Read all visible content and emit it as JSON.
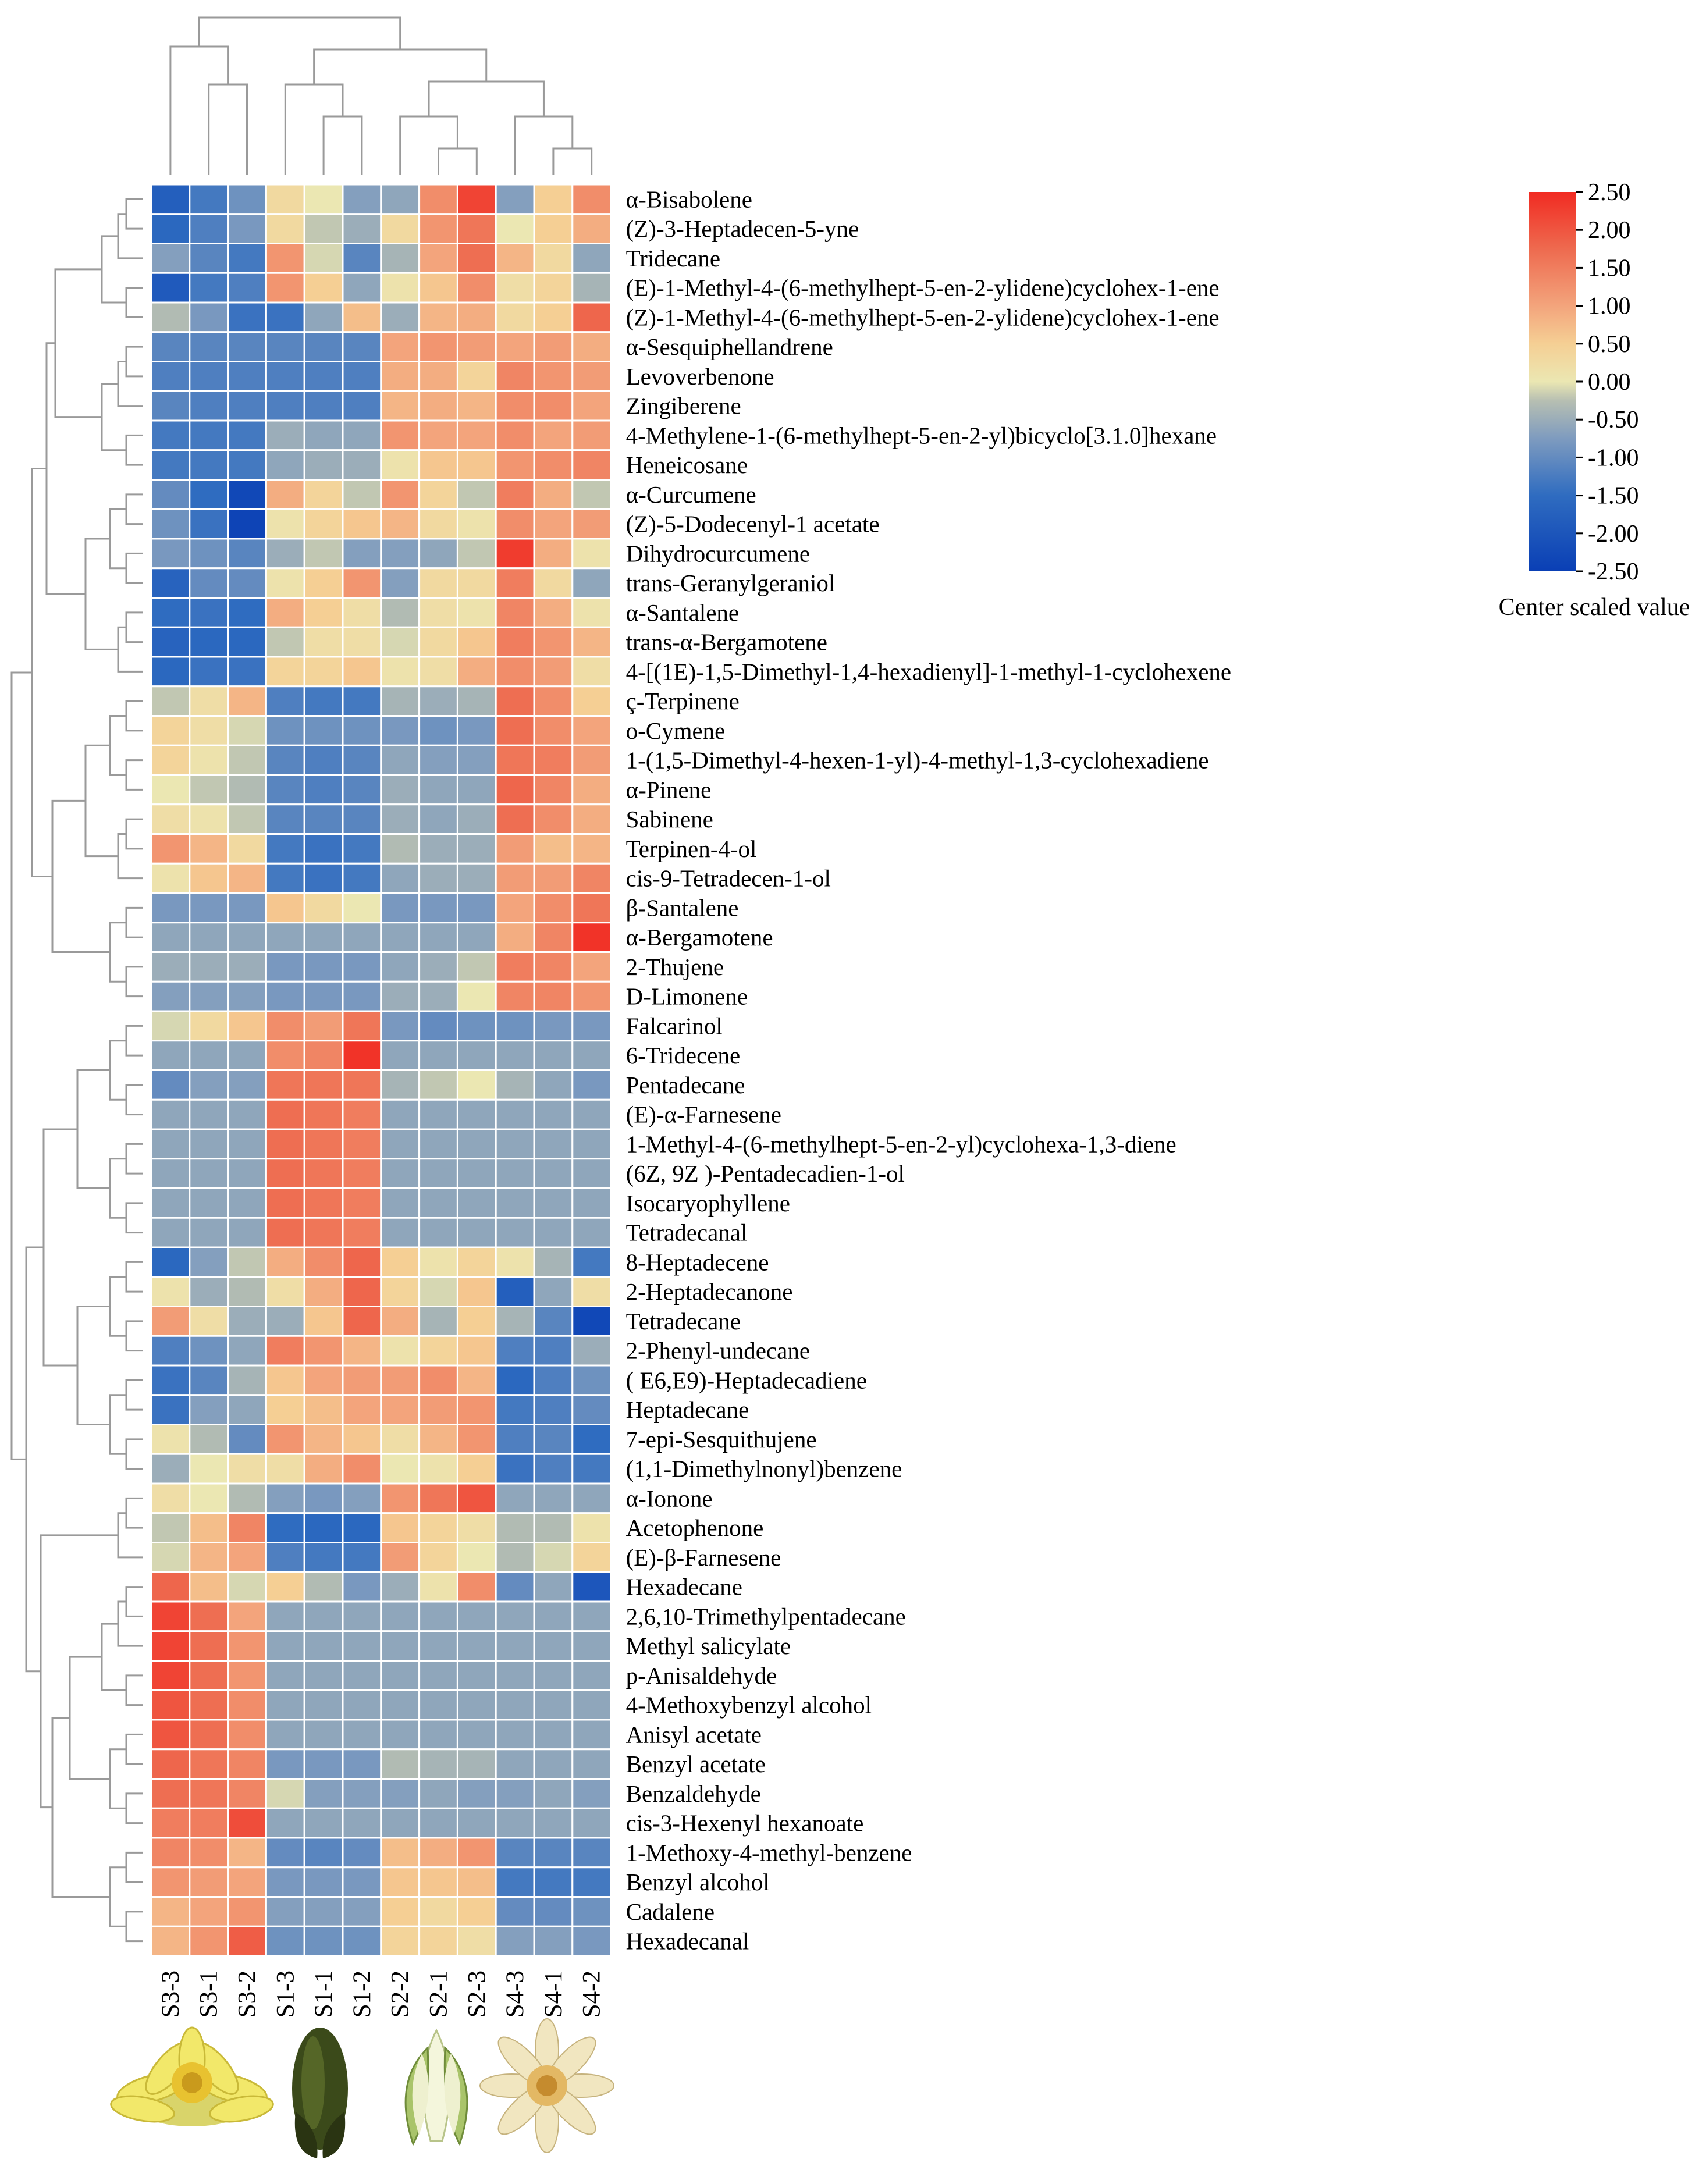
{
  "chart_data": {
    "type": "heatmap",
    "samples": [
      "S3-3",
      "S3-1",
      "S3-2",
      "S1-3",
      "S1-1",
      "S1-2",
      "S2-2",
      "S2-1",
      "S2-3",
      "S4-3",
      "S4-1",
      "S4-2"
    ],
    "compounds": [
      "α-Bisabolene",
      "(Z)-3-Heptadecen-5-yne",
      "Tridecane",
      "(E)-1-Methyl-4-(6-methylhept-5-en-2-ylidene)cyclohex-1-ene",
      "(Z)-1-Methyl-4-(6-methylhept-5-en-2-ylidene)cyclohex-1-ene",
      "α-Sesquiphellandrene",
      "Levoverbenone",
      "Zingiberene",
      "4-Methylene-1-(6-methylhept-5-en-2-yl)bicyclo[3.1.0]hexane",
      "Heneicosane",
      "α-Curcumene",
      "(Z)-5-Dodecenyl-1 acetate",
      "Dihydrocurcumene",
      "trans-Geranylgeraniol",
      "α-Santalene",
      "trans-α-Bergamotene",
      "4-[(1E)-1,5-Dimethyl-1,4-hexadienyl]-1-methyl-1-cyclohexene",
      "ç-Terpinene",
      "o-Cymene",
      "1-(1,5-Dimethyl-4-hexen-1-yl)-4-methyl-1,3-cyclohexadiene",
      "α-Pinene",
      "Sabinene",
      "Terpinen-4-ol",
      "cis-9-Tetradecen-1-ol",
      "β-Santalene",
      "α-Bergamotene",
      "2-Thujene",
      "D-Limonene",
      "Falcarinol",
      "6-Tridecene",
      "Pentadecane",
      "(E)-α-Farnesene",
      "1-Methyl-4-(6-methylhept-5-en-2-yl)cyclohexa-1,3-diene",
      "(6Z, 9Z )-Pentadecadien-1-ol",
      "Isocaryophyllene",
      "Tetradecanal",
      "8-Heptadecene",
      "2-Heptadecanone",
      "Tetradecane",
      "2-Phenyl-undecane",
      "( E6,E9)-Heptadecadiene",
      "Heptadecane",
      "7-epi-Sesquithujene",
      "(1,1-Dimethylnonyl)benzene",
      "α-Ionone",
      "Acetophenone",
      "(E)-β-Farnesene",
      "Hexadecane",
      "2,6,10-Trimethylpentadecane",
      "Methyl salicylate",
      "p-Anisaldehyde",
      "4-Methoxybenzyl alcohol",
      "Anisyl acetate",
      "Benzyl acetate",
      "Benzaldehyde",
      "cis-3-Hexenyl hexanoate",
      "1-Methoxy-4-methyl-benzene",
      "Benzyl alcohol",
      "Cadalene",
      "Hexadecanal"
    ],
    "values": [
      [
        -1.8,
        -1.3,
        -0.9,
        0.3,
        0,
        -0.7,
        -0.6,
        1.3,
        2.2,
        -0.7,
        0.5,
        1.3
      ],
      [
        -1.6,
        -1.2,
        -0.8,
        0.3,
        -0.2,
        -0.5,
        0.3,
        1.2,
        1.6,
        0,
        0.5,
        0.9
      ],
      [
        -0.7,
        -1.1,
        -1.3,
        1.2,
        -0.1,
        -1.1,
        -0.4,
        1,
        1.7,
        0.8,
        0.3,
        -0.6
      ],
      [
        -1.9,
        -1.3,
        -1.2,
        1.2,
        0.5,
        -0.6,
        0.1,
        0.6,
        1.3,
        0.2,
        0.4,
        -0.4
      ],
      [
        -0.3,
        -0.8,
        -1.4,
        -1.4,
        -0.6,
        0.7,
        -0.5,
        0.8,
        0.9,
        0.3,
        0.5,
        1.8
      ],
      [
        -1.1,
        -1.1,
        -1.1,
        -1.1,
        -1.1,
        -1.1,
        1,
        1.2,
        1.1,
        1,
        1.1,
        0.9
      ],
      [
        -1.2,
        -1.2,
        -1.2,
        -1.2,
        -1.2,
        -1.2,
        0.9,
        0.9,
        0.4,
        1.4,
        1.2,
        1.1
      ],
      [
        -1.1,
        -1.2,
        -1.2,
        -1.2,
        -1.2,
        -1.2,
        0.8,
        0.9,
        0.8,
        1.3,
        1.3,
        1
      ],
      [
        -1.3,
        -1.3,
        -1.3,
        -0.5,
        -0.6,
        -0.6,
        1.2,
        1,
        1,
        1.3,
        1,
        1.1
      ],
      [
        -1.3,
        -1.3,
        -1.3,
        -0.6,
        -0.5,
        -0.5,
        0.1,
        0.6,
        0.6,
        1.2,
        1.3,
        1.4
      ],
      [
        -1,
        -1.5,
        -2.3,
        0.9,
        0.4,
        -0.2,
        1.2,
        0.4,
        -0.2,
        1.5,
        0.9,
        -0.2
      ],
      [
        -0.9,
        -1.4,
        -2.4,
        0.1,
        0.4,
        0.6,
        0.8,
        0.3,
        0.1,
        1.3,
        1,
        1.1
      ],
      [
        -0.8,
        -0.9,
        -1.1,
        -0.5,
        -0.2,
        -0.7,
        -0.7,
        -0.6,
        -0.2,
        2.3,
        0.9,
        0.1
      ],
      [
        -1.7,
        -1,
        -1,
        0.1,
        0.5,
        1.2,
        -0.7,
        0.3,
        0.3,
        1.5,
        0.3,
        -0.6
      ],
      [
        -1.5,
        -1.4,
        -1.5,
        0.9,
        0.5,
        0.2,
        -0.3,
        0.2,
        0.1,
        1.4,
        0.9,
        0.1
      ],
      [
        -1.7,
        -1.6,
        -1.6,
        -0.2,
        0.2,
        0.2,
        -0.1,
        0.3,
        0.6,
        1.5,
        1.2,
        0.8
      ],
      [
        -1.6,
        -1.4,
        -1.4,
        0.4,
        0.4,
        0.6,
        0.1,
        0.2,
        0.9,
        1.3,
        1.1,
        0.2
      ],
      [
        -0.2,
        0.2,
        0.8,
        -1.2,
        -1.3,
        -1.3,
        -0.4,
        -0.5,
        -0.4,
        1.7,
        1.3,
        0.5
      ],
      [
        0.4,
        0.2,
        -0.1,
        -0.9,
        -0.9,
        -0.9,
        -0.8,
        -0.9,
        -0.8,
        1.7,
        1.3,
        1
      ],
      [
        0.4,
        0.1,
        -0.2,
        -1.1,
        -1.2,
        -1.1,
        -0.6,
        -0.7,
        -0.7,
        1.6,
        1.5,
        1.1
      ],
      [
        0,
        -0.2,
        -0.3,
        -1.1,
        -1.2,
        -1.1,
        -0.5,
        -0.6,
        -0.6,
        1.8,
        1.4,
        0.9
      ],
      [
        0.2,
        0.1,
        -0.2,
        -1.1,
        -1.1,
        -1.1,
        -0.5,
        -0.6,
        -0.5,
        1.7,
        1.3,
        0.9
      ],
      [
        1.2,
        0.8,
        0.3,
        -1.3,
        -1.4,
        -1.3,
        -0.3,
        -0.5,
        -0.5,
        1.1,
        0.7,
        0.8
      ],
      [
        0.1,
        0.6,
        0.8,
        -1.3,
        -1.4,
        -1.3,
        -0.6,
        -0.5,
        -0.5,
        1.1,
        1.1,
        1.4
      ],
      [
        -0.8,
        -0.8,
        -0.8,
        0.6,
        0.3,
        0,
        -0.8,
        -0.8,
        -0.8,
        1,
        1.3,
        1.6
      ],
      [
        -0.6,
        -0.6,
        -0.6,
        -0.6,
        -0.6,
        -0.6,
        -0.6,
        -0.6,
        -0.6,
        0.9,
        1.4,
        2.4
      ],
      [
        -0.5,
        -0.5,
        -0.5,
        -0.8,
        -0.8,
        -0.8,
        -0.6,
        -0.5,
        -0.2,
        1.5,
        1.4,
        1
      ],
      [
        -0.7,
        -0.7,
        -0.7,
        -0.8,
        -0.8,
        -0.8,
        -0.5,
        -0.5,
        0,
        1.4,
        1.4,
        1.2
      ],
      [
        -0.1,
        0.3,
        0.6,
        1.3,
        1.1,
        1.6,
        -0.8,
        -1,
        -0.9,
        -0.9,
        -0.8,
        -0.8
      ],
      [
        -0.6,
        -0.6,
        -0.6,
        1.3,
        1.4,
        2.4,
        -0.6,
        -0.6,
        -0.6,
        -0.6,
        -0.6,
        -0.6
      ],
      [
        -1,
        -0.7,
        -0.7,
        1.6,
        1.6,
        1.6,
        -0.4,
        -0.2,
        0,
        -0.4,
        -0.6,
        -0.8
      ],
      [
        -0.6,
        -0.6,
        -0.6,
        1.7,
        1.6,
        1.5,
        -0.6,
        -0.6,
        -0.6,
        -0.6,
        -0.6,
        -0.6
      ],
      [
        -0.6,
        -0.6,
        -0.6,
        1.7,
        1.6,
        1.5,
        -0.6,
        -0.6,
        -0.6,
        -0.6,
        -0.6,
        -0.6
      ],
      [
        -0.6,
        -0.6,
        -0.6,
        1.7,
        1.6,
        1.5,
        -0.6,
        -0.6,
        -0.6,
        -0.6,
        -0.6,
        -0.6
      ],
      [
        -0.6,
        -0.6,
        -0.6,
        1.7,
        1.6,
        1.5,
        -0.6,
        -0.6,
        -0.6,
        -0.6,
        -0.6,
        -0.6
      ],
      [
        -0.6,
        -0.6,
        -0.6,
        1.7,
        1.6,
        1.5,
        -0.6,
        -0.6,
        -0.6,
        -0.6,
        -0.6,
        -0.6
      ],
      [
        -1.6,
        -0.7,
        -0.2,
        0.9,
        1.3,
        1.8,
        0.5,
        0.1,
        0.4,
        0.1,
        -0.4,
        -1.3
      ],
      [
        0.1,
        -0.5,
        -0.3,
        0.2,
        0.9,
        1.8,
        0.4,
        -0.1,
        0.6,
        -1.8,
        -0.6,
        0.2
      ],
      [
        1.1,
        0.2,
        -0.5,
        -0.5,
        0.6,
        1.8,
        0.9,
        -0.4,
        0.5,
        -0.4,
        -1.1,
        -2.3
      ],
      [
        -1.2,
        -0.9,
        -0.6,
        1.5,
        1.2,
        0.8,
        0.1,
        0.4,
        0.6,
        -1.2,
        -1.2,
        -0.5
      ],
      [
        -1.4,
        -1.1,
        -0.4,
        0.6,
        1,
        1.1,
        1.1,
        1.3,
        0.8,
        -1.6,
        -1.2,
        -0.9
      ],
      [
        -1.4,
        -0.7,
        -0.6,
        0.5,
        0.7,
        1,
        1,
        1.1,
        1.2,
        -1.3,
        -1.2,
        -1
      ],
      [
        0.1,
        -0.3,
        -1,
        1.2,
        0.8,
        0.6,
        0.2,
        0.8,
        1.2,
        -1.2,
        -1.1,
        -1.5
      ],
      [
        -0.5,
        0,
        0.2,
        0.2,
        0.9,
        1.3,
        0,
        0.1,
        0.5,
        -1.4,
        -1.2,
        -1.3
      ],
      [
        0.2,
        0,
        -0.3,
        -0.7,
        -0.8,
        -0.7,
        1.2,
        1.6,
        2,
        -0.6,
        -0.6,
        -0.6
      ],
      [
        -0.2,
        0.7,
        1.4,
        -1.5,
        -1.6,
        -1.6,
        0.6,
        0.4,
        0.2,
        -0.3,
        -0.3,
        0.1
      ],
      [
        -0.1,
        0.8,
        1,
        -1.2,
        -1.3,
        -1.3,
        1.1,
        0.4,
        0,
        -0.3,
        -0.1,
        0.4
      ],
      [
        1.8,
        0.7,
        -0.1,
        0.5,
        -0.3,
        -0.8,
        -0.5,
        0.1,
        1.3,
        -1,
        -0.6,
        -2
      ],
      [
        2.2,
        1.7,
        1,
        -0.6,
        -0.6,
        -0.6,
        -0.6,
        -0.6,
        -0.6,
        -0.6,
        -0.6,
        -0.6
      ],
      [
        2.2,
        1.7,
        1.2,
        -0.6,
        -0.6,
        -0.6,
        -0.6,
        -0.6,
        -0.6,
        -0.6,
        -0.6,
        -0.6
      ],
      [
        2.2,
        1.7,
        1.2,
        -0.6,
        -0.6,
        -0.6,
        -0.6,
        -0.6,
        -0.6,
        -0.6,
        -0.6,
        -0.6
      ],
      [
        2,
        1.7,
        1.3,
        -0.6,
        -0.6,
        -0.6,
        -0.6,
        -0.6,
        -0.6,
        -0.6,
        -0.6,
        -0.6
      ],
      [
        2,
        1.7,
        1.3,
        -0.6,
        -0.6,
        -0.6,
        -0.6,
        -0.6,
        -0.6,
        -0.6,
        -0.6,
        -0.6
      ],
      [
        1.8,
        1.6,
        1.4,
        -0.8,
        -0.8,
        -0.8,
        -0.3,
        -0.4,
        -0.4,
        -0.6,
        -0.6,
        -0.6
      ],
      [
        1.7,
        1.6,
        1.4,
        -0.1,
        -0.7,
        -0.7,
        -0.7,
        -0.6,
        -0.7,
        -0.7,
        -0.6,
        -0.7
      ],
      [
        1.5,
        1.5,
        2.1,
        -0.6,
        -0.6,
        -0.6,
        -0.6,
        -0.6,
        -0.6,
        -0.6,
        -0.6,
        -0.6
      ],
      [
        1.4,
        1.3,
        0.8,
        -1,
        -1.1,
        -1,
        0.7,
        0.9,
        1.2,
        -1.1,
        -1.1,
        -1.1
      ],
      [
        1.2,
        1.1,
        1,
        -0.8,
        -0.8,
        -0.8,
        0.6,
        0.6,
        0.7,
        -1.3,
        -1.3,
        -1.3
      ],
      [
        0.8,
        1,
        1.2,
        -0.7,
        -0.7,
        -0.7,
        0.5,
        0.3,
        0.5,
        -1,
        -1,
        -0.9
      ],
      [
        0.8,
        1.2,
        1.9,
        -0.9,
        -0.9,
        -0.9,
        0.4,
        0.4,
        0.2,
        -0.7,
        -0.7,
        -0.8
      ]
    ],
    "row_order_note": "rows clustered by hierarchical dendrogram (left); columns clustered (top)",
    "colorbar": {
      "title": "Center scaled value",
      "min": -2.5,
      "max": 2.5,
      "ticks": [
        "2.50",
        "2.00",
        "1.50",
        "1.00",
        "0.50",
        "0.00",
        "-0.50",
        "-1.00",
        "-1.50",
        "-2.00",
        "-2.50"
      ]
    },
    "colors": {
      "low": "#0a3fb5",
      "mid": "#ebe7b2",
      "high": "#f12b22",
      "line": "#9a9a9a",
      "grid": "#ffffff"
    }
  }
}
